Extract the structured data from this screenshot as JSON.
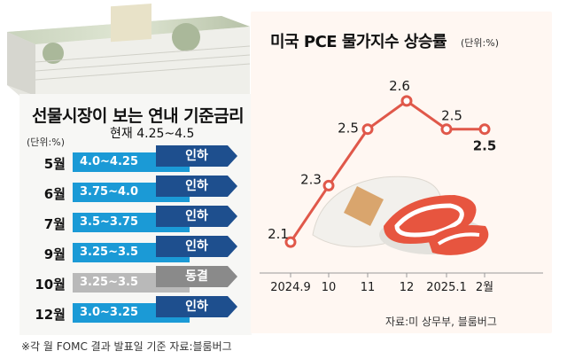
{
  "left": {
    "title": "선물시장이 보는 연내 기준금리",
    "unit": "(단위:%)",
    "current_label": "현재  4.25~4.5",
    "rows": [
      {
        "month": "5월",
        "range": "4.0~4.25",
        "action": "인하",
        "kind": "cut"
      },
      {
        "month": "6월",
        "range": "3.75~4.0",
        "action": "인하",
        "kind": "cut"
      },
      {
        "month": "7월",
        "range": "3.5~3.75",
        "action": "인하",
        "kind": "cut"
      },
      {
        "month": "9월",
        "range": "3.25~3.5",
        "action": "인하",
        "kind": "cut"
      },
      {
        "month": "10월",
        "range": "3.25~3.5",
        "action": "동결",
        "kind": "hold"
      },
      {
        "month": "12월",
        "range": "3.0~3.25",
        "action": "인하",
        "kind": "cut"
      }
    ],
    "footnote": "※각 월 FOMC 결과 발표일 기준  자료:블룸버그"
  },
  "colors": {
    "cut_range": "#1b9ad6",
    "cut_action": "#1e4f8e",
    "hold_range": "#b9b9b9",
    "hold_action": "#8a8a8a",
    "line": "#e0584a",
    "panel": "#fff7f2"
  },
  "chart_data": {
    "type": "line",
    "title": "미국 PCE 물가지수 상승률",
    "unit": "(단위:%)",
    "categories": [
      "2024.9",
      "10",
      "11",
      "12",
      "2025.1",
      "2월"
    ],
    "values": [
      2.1,
      2.3,
      2.5,
      2.6,
      2.5,
      2.5
    ],
    "data_labels": [
      "2.1",
      "2.3",
      "2.5",
      "2.6",
      "2.5",
      "2.5"
    ],
    "ylim": [
      2.0,
      2.7
    ],
    "grid": false,
    "legend": "none",
    "source": "자료:미 상무부, 블룸버그"
  }
}
